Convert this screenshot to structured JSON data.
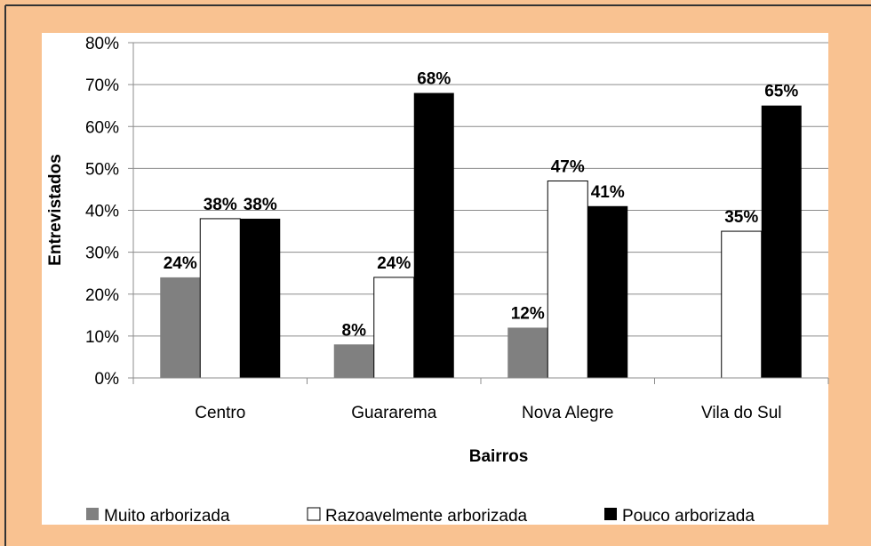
{
  "chart_data": {
    "type": "bar",
    "categories": [
      "Centro",
      "Guararema",
      "Nova Alegre",
      "Vila do Sul"
    ],
    "series": [
      {
        "name": "Muito arborizada",
        "color": "#808080",
        "values": [
          24,
          8,
          12,
          null
        ],
        "value_labels": [
          "24%",
          "8%",
          "12%",
          null
        ]
      },
      {
        "name": "Razoavelmente arborizada",
        "color": "#ffffff",
        "values": [
          38,
          24,
          47,
          35
        ],
        "value_labels": [
          "38%",
          "24%",
          "47%",
          "35%"
        ]
      },
      {
        "name": "Pouco arborizada",
        "color": "#000000",
        "values": [
          38,
          68,
          41,
          65
        ],
        "value_labels": [
          "38%",
          "68%",
          "41%",
          "65%"
        ]
      }
    ],
    "ylim": [
      0,
      80
    ],
    "yticks": [
      {
        "value": 0,
        "label": "0%"
      },
      {
        "value": 10,
        "label": "10%"
      },
      {
        "value": 20,
        "label": "20%"
      },
      {
        "value": 30,
        "label": "30%"
      },
      {
        "value": 40,
        "label": "40%"
      },
      {
        "value": 50,
        "label": "50%"
      },
      {
        "value": 60,
        "label": "60%"
      },
      {
        "value": 70,
        "label": "70%"
      },
      {
        "value": 80,
        "label": "80%"
      }
    ],
    "xlabel": "Bairros",
    "ylabel": "Entrevistados",
    "grid": true,
    "legend": "bottom"
  }
}
